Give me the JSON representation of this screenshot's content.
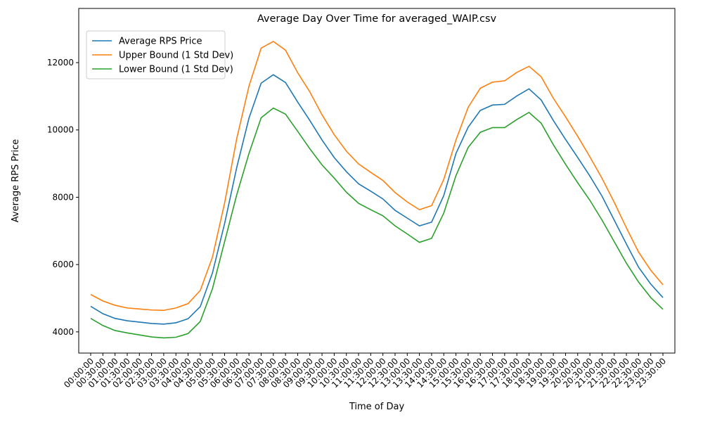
{
  "chart_data": {
    "type": "line",
    "title": "Average Day Over Time for averaged_WAIP.csv",
    "x_label": "Time of Day",
    "y_label": "Average RPS Price",
    "categories": [
      "00:00:00",
      "00:30:00",
      "01:00:00",
      "01:30:00",
      "02:00:00",
      "02:30:00",
      "03:00:00",
      "03:30:00",
      "04:00:00",
      "04:30:00",
      "05:00:00",
      "05:30:00",
      "06:00:00",
      "06:30:00",
      "07:00:00",
      "07:30:00",
      "08:00:00",
      "08:30:00",
      "09:00:00",
      "09:30:00",
      "10:00:00",
      "10:30:00",
      "11:00:00",
      "11:30:00",
      "12:00:00",
      "12:30:00",
      "13:00:00",
      "13:30:00",
      "14:00:00",
      "14:30:00",
      "15:00:00",
      "15:30:00",
      "16:00:00",
      "16:30:00",
      "17:00:00",
      "17:30:00",
      "18:00:00",
      "18:30:00",
      "19:00:00",
      "19:30:00",
      "20:00:00",
      "20:30:00",
      "21:00:00",
      "21:30:00",
      "22:00:00",
      "22:30:00",
      "23:00:00",
      "23:30:00"
    ],
    "series": [
      {
        "name": "Average RPS Price",
        "color": "#1f77b4",
        "values": [
          4760,
          4540,
          4400,
          4330,
          4290,
          4250,
          4230,
          4270,
          4390,
          4750,
          5750,
          7220,
          8890,
          10350,
          11390,
          11640,
          11410,
          10830,
          10280,
          9700,
          9180,
          8760,
          8400,
          8180,
          7950,
          7610,
          7380,
          7150,
          7260,
          8050,
          9300,
          10080,
          10580,
          10740,
          10760,
          11010,
          11220,
          10890,
          10280,
          9720,
          9180,
          8630,
          8030,
          7320,
          6610,
          5920,
          5420,
          5020
        ]
      },
      {
        "name": "Upper Bound (1 Std Dev)",
        "color": "#ff7f0e",
        "values": [
          5110,
          4920,
          4790,
          4710,
          4680,
          4650,
          4640,
          4710,
          4840,
          5230,
          6220,
          7830,
          9750,
          11300,
          12430,
          12630,
          12370,
          11700,
          11130,
          10450,
          9860,
          9370,
          8990,
          8740,
          8500,
          8140,
          7860,
          7630,
          7750,
          8530,
          9700,
          10670,
          11240,
          11420,
          11460,
          11710,
          11890,
          11580,
          10940,
          10390,
          9810,
          9200,
          8560,
          7850,
          7090,
          6370,
          5830,
          5400
        ]
      },
      {
        "name": "Lower Bound (1 Std Dev)",
        "color": "#2ca02c",
        "values": [
          4400,
          4190,
          4040,
          3970,
          3910,
          3850,
          3820,
          3840,
          3950,
          4310,
          5280,
          6680,
          8080,
          9300,
          10360,
          10650,
          10470,
          9960,
          9440,
          8960,
          8570,
          8150,
          7820,
          7630,
          7450,
          7150,
          6910,
          6660,
          6780,
          7530,
          8640,
          9480,
          9930,
          10070,
          10070,
          10310,
          10520,
          10200,
          9560,
          8980,
          8430,
          7910,
          7320,
          6680,
          6040,
          5480,
          5020,
          4670
        ]
      }
    ],
    "ylim": [
      3370,
      13610
    ],
    "yticks": [
      4000,
      6000,
      8000,
      10000,
      12000
    ],
    "legend": "upper left",
    "grid": false
  }
}
